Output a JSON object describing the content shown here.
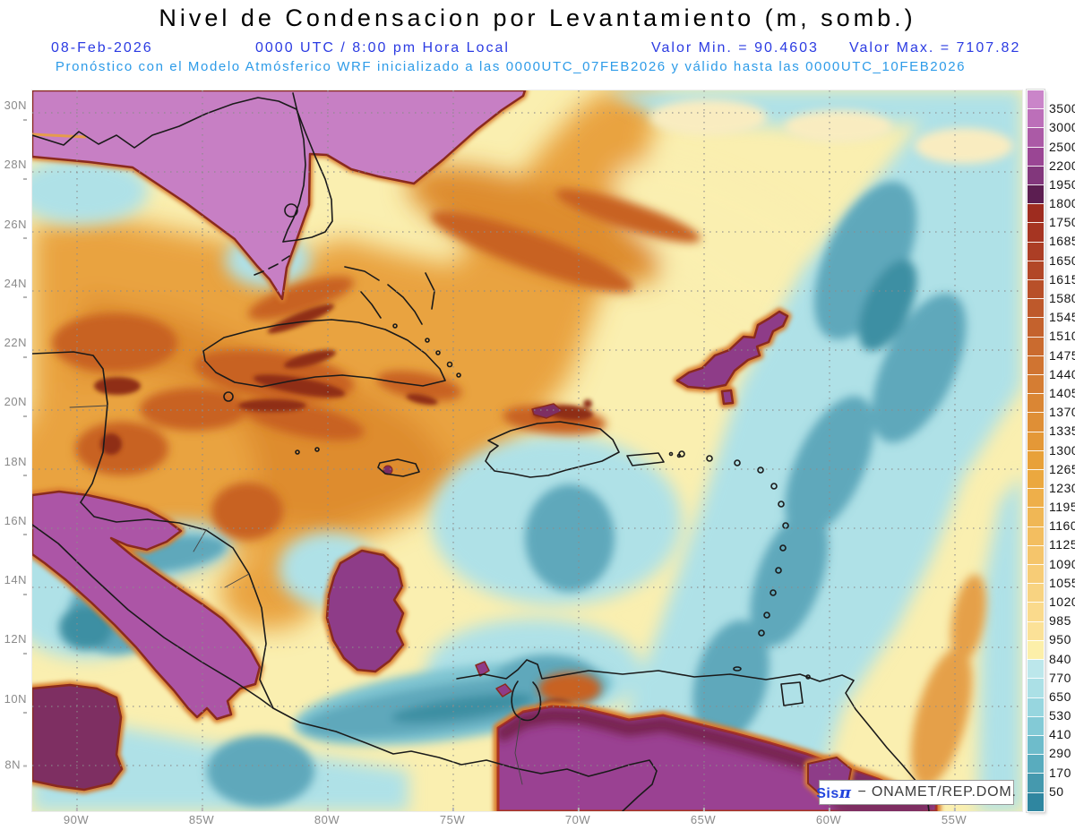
{
  "header": {
    "title": "Nivel de Condensacion por Levantamiento (m, somb.)",
    "date": "08-Feb-2026",
    "time": "0000 UTC / 8:00 pm Hora Local",
    "min_label": "Valor Min. = 90.4603",
    "max_label": "Valor Max. = 7107.82",
    "forecast_line": "Pronóstico con el Modelo Atmósferico WRF inicializado a las 0000UTC_07FEB2026 y válido hasta las  0000UTC_10FEB2026"
  },
  "colors": {
    "title": "#000000",
    "subtitle_blue": "#2B3BE2",
    "forecast_blue": "#2D9BE8",
    "axis_label": "#8a8a8a",
    "colorbar_label": "#151515"
  },
  "map": {
    "lat_ticks": [
      "30N",
      "28N",
      "26N",
      "24N",
      "22N",
      "20N",
      "18N",
      "16N",
      "14N",
      "12N",
      "10N",
      "8N"
    ],
    "lon_ticks": [
      "90W",
      "85W",
      "80W",
      "75W",
      "70W",
      "65W",
      "60W",
      "55W"
    ]
  },
  "colorbar": {
    "unit": "m",
    "levels": [
      "3500",
      "3000",
      "2500",
      "2200",
      "1950",
      "1800",
      "1750",
      "1685",
      "1650",
      "1615",
      "1580",
      "1545",
      "1510",
      "1475",
      "1440",
      "1405",
      "1370",
      "1335",
      "1300",
      "1265",
      "1230",
      "1195",
      "1160",
      "1125",
      "1090",
      "1055",
      "1020",
      "985",
      "950",
      "840",
      "770",
      "650",
      "530",
      "410",
      "290",
      "170",
      "50"
    ],
    "colors": [
      "#CA85C9",
      "#BC6FB9",
      "#AB5AA6",
      "#9A4694",
      "#82377C",
      "#5C1E51",
      "#9E2C1F",
      "#A63522",
      "#AC3E25",
      "#B24727",
      "#B85029",
      "#BE592B",
      "#C4622D",
      "#CA6B2F",
      "#D07431",
      "#D57D33",
      "#DA8634",
      "#DF8F36",
      "#E49837",
      "#E8A139",
      "#EBA83F",
      "#EEAF4A",
      "#F0B755",
      "#F3BE60",
      "#F5C56B",
      "#F7CC76",
      "#F8D381",
      "#FADA8C",
      "#FBE197",
      "#FCEFA9",
      "#BCE7EB",
      "#ABE0E6",
      "#97D6DF",
      "#83CAD6",
      "#6EBCCB",
      "#59ACBE",
      "#4599AE",
      "#2F86A0"
    ]
  },
  "attribution": {
    "brand": "Sis",
    "brand_symbol": "π",
    "text": "− ONAMET/REP.DOM."
  }
}
